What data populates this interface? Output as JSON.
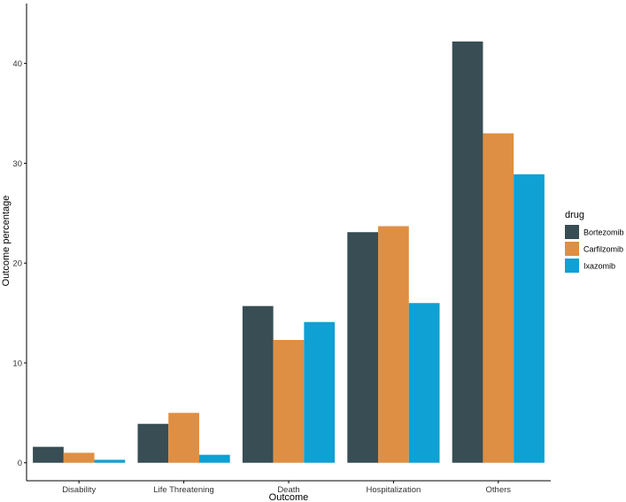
{
  "chart_data": {
    "type": "bar",
    "title": "",
    "xlabel": "Outcome",
    "ylabel": "Outcome percentage",
    "categories": [
      "Disability",
      "Life Threatening",
      "Death",
      "Hospitalization",
      "Others"
    ],
    "ylim": [
      -1.8,
      46
    ],
    "yticks": [
      0,
      10,
      20,
      30,
      40
    ],
    "grid": false,
    "legend": {
      "title": "drug",
      "placement": "right"
    },
    "series": [
      {
        "name": "Bortezomib",
        "color": "#384d54",
        "values": [
          1.6,
          3.9,
          15.7,
          23.1,
          42.2
        ]
      },
      {
        "name": "Carfilzomib",
        "color": "#de8f43",
        "values": [
          1.0,
          5.0,
          12.3,
          23.7,
          33.0
        ]
      },
      {
        "name": "Ixazomib",
        "color": "#0fa0d4",
        "values": [
          0.3,
          0.8,
          14.1,
          16.0,
          28.9
        ]
      }
    ]
  }
}
